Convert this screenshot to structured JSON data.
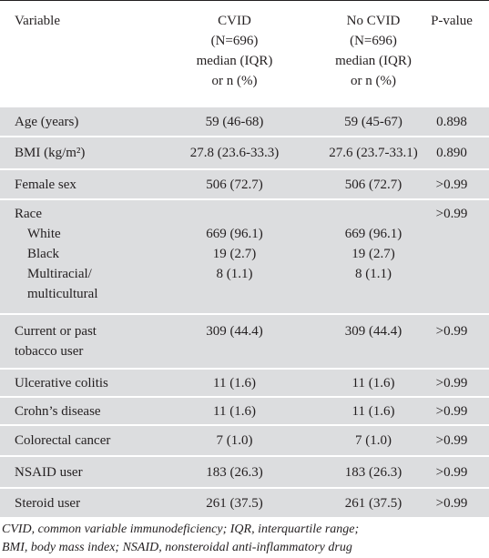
{
  "table": {
    "header": [
      [
        "Variable"
      ],
      [
        "CVID",
        "(N=696)",
        "median (IQR)",
        "or n (%)"
      ],
      [
        "No CVID",
        "(N=696)",
        "median (IQR)",
        "or n (%)"
      ],
      [
        "P-value"
      ]
    ],
    "rows": [
      {
        "variable": [
          "Age (years)"
        ],
        "cvid": "59 (46-68)",
        "no_cvid": "59 (45-67)",
        "p": "0.898"
      },
      {
        "variable": [
          "BMI (kg/m²)"
        ],
        "cvid": "27.8 (23.6-33.3)",
        "no_cvid": "27.6 (23.7-33.1)",
        "p": "0.890"
      },
      {
        "variable": [
          "Female sex"
        ],
        "cvid": "506 (72.7)",
        "no_cvid": "506 (72.7)",
        "p": ">0.99"
      },
      {
        "variable": [
          "Race"
        ],
        "p": ">0.99",
        "subrows": [
          {
            "variable": [
              "White"
            ],
            "cvid": "669 (96.1)",
            "no_cvid": "669 (96.1)"
          },
          {
            "variable": [
              "Black"
            ],
            "cvid": "19 (2.7)",
            "no_cvid": "19 (2.7)"
          },
          {
            "variable": [
              "Multiracial/",
              "multicultural"
            ],
            "cvid": "8 (1.1)",
            "no_cvid": "8 (1.1)"
          }
        ]
      },
      {
        "variable": [
          "Current or past",
          "tobacco user"
        ],
        "cvid": "309 (44.4)",
        "no_cvid": "309 (44.4)",
        "p": ">0.99"
      },
      {
        "variable": [
          "Ulcerative colitis"
        ],
        "cvid": "11 (1.6)",
        "no_cvid": "11 (1.6)",
        "p": ">0.99"
      },
      {
        "variable": [
          "Crohn’s disease"
        ],
        "cvid": "11 (1.6)",
        "no_cvid": "11 (1.6)",
        "p": ">0.99"
      },
      {
        "variable": [
          "Colorectal cancer"
        ],
        "cvid": "7 (1.0)",
        "no_cvid": "7 (1.0)",
        "p": ">0.99"
      },
      {
        "variable": [
          "NSAID user"
        ],
        "cvid": "183 (26.3)",
        "no_cvid": "183 (26.3)",
        "p": ">0.99"
      },
      {
        "variable": [
          "Steroid user"
        ],
        "cvid": "261 (37.5)",
        "no_cvid": "261 (37.5)",
        "p": ">0.99"
      }
    ],
    "footnote": [
      "CVID, common variable immunodeficiency; IQR, interquartile range;",
      "BMI, body mass index; NSAID, nonsteroidal anti-inflammatory drug"
    ]
  }
}
